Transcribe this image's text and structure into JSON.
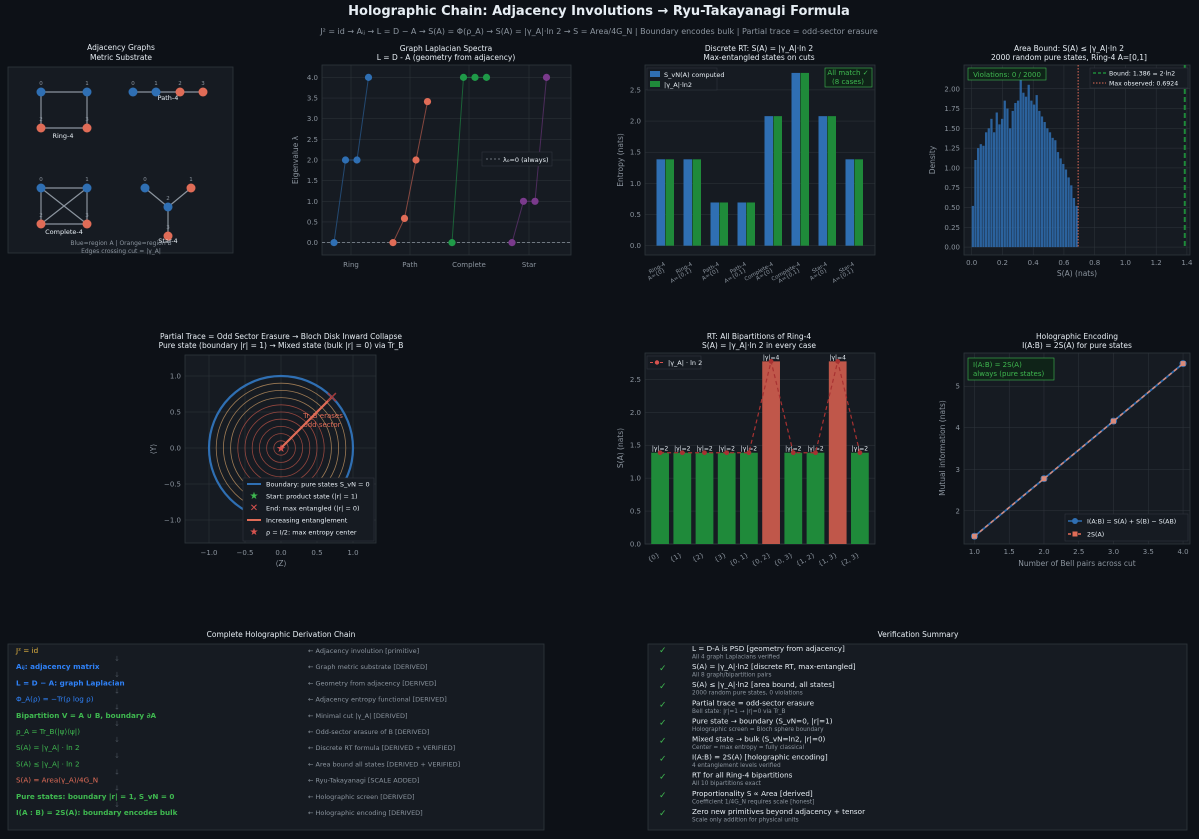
{
  "title": "Holographic Chain: Adjacency Involutions → Ryu-Takayanagi Formula",
  "subtitle": "J² = id  →  Aᵢⱼ  →  L = D − A  →  S(A) = Φ(ρ_A)  →  S(A) = |γ_A|·ln 2  →  S = Area/4G_N  |  Boundary encodes bulk  |  Partial trace = odd-sector erasure",
  "colors": {
    "blue": "#2f6fb3",
    "orange": "#e06c57",
    "green": "#1f8a3a",
    "purple": "#7a3a8c",
    "dashred": "#d9534f",
    "bg": "#0d1117",
    "panel": "#161b22"
  },
  "panel_graphs": {
    "title": "Adjacency Graphs",
    "title2": "Metric Substrate",
    "labels": [
      "Ring-4",
      "Path-4",
      "Complete-4",
      "Star-4"
    ],
    "legend1": "Blue=region A  |  Orange=region B",
    "legend2": "Edges crossing cut = |γ_A|"
  },
  "chart_data": [
    {
      "type": "scatter",
      "title": "Graph Laplacian Spectra",
      "subtitle": "L = D - A  (geometry from adjacency)",
      "ylabel": "Eigenvalue λ",
      "categories": [
        "Ring",
        "Path",
        "Complete",
        "Star"
      ],
      "series": [
        {
          "name": "Ring",
          "values": [
            0,
            2,
            2,
            4
          ]
        },
        {
          "name": "Path",
          "values": [
            0,
            0.586,
            2,
            3.414
          ]
        },
        {
          "name": "Complete",
          "values": [
            0,
            4,
            4,
            4
          ]
        },
        {
          "name": "Star",
          "values": [
            0,
            1,
            1,
            4
          ]
        }
      ],
      "legend": "λ₀=0 (always)",
      "ylim": [
        0,
        4
      ],
      "yticks": [
        "0.0",
        "0.5",
        "1.0",
        "1.5",
        "2.0",
        "2.5",
        "3.0",
        "3.5",
        "4.0"
      ]
    },
    {
      "type": "bar",
      "title": "Discrete RT: S(A) = |γ_A|·ln 2",
      "subtitle": "Max-entangled states on cuts",
      "ylabel": "Entropy (nats)",
      "categories": [
        "Ring-4\nA={0}",
        "Ring-4\nA={0,1}",
        "Path-4\nA={0}",
        "Path-4\nA={0,1}",
        "Complete-4\nA={0}",
        "Complete-4\nA={0,1}",
        "Star-4\nA={0}",
        "Star-4\nA={0,1}"
      ],
      "series": [
        {
          "name": "S_vN(A) computed",
          "values": [
            1.386,
            1.386,
            0.693,
            0.693,
            2.079,
            2.773,
            2.079,
            1.386
          ]
        },
        {
          "name": "|γ_A|·ln2",
          "values": [
            1.386,
            1.386,
            0.693,
            0.693,
            2.079,
            2.773,
            2.079,
            1.386
          ]
        }
      ],
      "annotation1": "All match ✓",
      "annotation2": "(8 cases)",
      "ylim": [
        0,
        2.9
      ],
      "yticks": [
        "0.0",
        "0.5",
        "1.0",
        "1.5",
        "2.0",
        "2.5"
      ]
    },
    {
      "type": "histogram",
      "title": "Area Bound: S(A) ≤ |γ_A|·ln 2",
      "subtitle": "2000 random pure states, Ring-4 A=[0,1]",
      "xlabel": "S(A) (nats)",
      "ylabel": "Density",
      "values": [
        0.52,
        1.1,
        1.25,
        1.3,
        1.28,
        1.45,
        1.5,
        1.62,
        1.45,
        1.7,
        1.55,
        1.62,
        1.85,
        1.75,
        1.5,
        1.72,
        1.82,
        1.85,
        2.18,
        1.95,
        1.9,
        2.05,
        1.85,
        1.8,
        1.92,
        1.72,
        1.65,
        1.58,
        1.5,
        1.45,
        1.38,
        1.35,
        1.2,
        1.12,
        1.05,
        0.98,
        0.88,
        0.78,
        0.62,
        0.52
      ],
      "annotation": "Violations: 0 / 2000",
      "legend": [
        "Bound: 1.386 = 2·ln2",
        "Max observed: 0.6924"
      ],
      "xlim": [
        -0.05,
        1.42
      ],
      "ylim": [
        0,
        2.3
      ],
      "xticks": [
        "0.0",
        "0.2",
        "0.4",
        "0.6",
        "0.8",
        "1.0",
        "1.2",
        "1.4"
      ],
      "yticks": [
        "0.00",
        "0.25",
        "0.50",
        "0.75",
        "1.00",
        "1.25",
        "1.50",
        "1.75",
        "2.00"
      ]
    },
    {
      "type": "line",
      "title": "Partial Trace = Odd Sector Erasure  →  Bloch Disk Inward Collapse",
      "subtitle": "Pure state (boundary |r| = 1) → Mixed state (bulk |r| = 0) via Tr_B",
      "xlabel": "⟨Z⟩",
      "ylabel": "⟨Y⟩",
      "annotation": "Tr_B erases\nodd sector",
      "legend": [
        "Boundary: pure states S_vN = 0",
        "Start: product state (|r| = 1)",
        "End: max entangled (|r| = 0)",
        "Increasing entanglement",
        "ρ = I/2: max entropy center"
      ],
      "xticks": [
        "−1.0",
        "−0.5",
        "0.0",
        "0.5",
        "1.0"
      ],
      "yticks": [
        "−1.0",
        "−0.5",
        "0.0",
        "0.5",
        "1.0"
      ]
    },
    {
      "type": "bar",
      "title": "RT: All Bipartitions of Ring-4",
      "subtitle": "S(A) = |γ_A|·ln 2 in every case",
      "ylabel": "S(A) (nats)",
      "categories": [
        "{0}",
        "{1}",
        "{2}",
        "{3}",
        "{0, 1}",
        "{0, 2}",
        "{0, 3}",
        "{1, 2}",
        "{1, 3}",
        "{2, 3}"
      ],
      "values": [
        1.386,
        1.386,
        1.386,
        1.386,
        1.386,
        2.773,
        1.386,
        1.386,
        2.773,
        1.386
      ],
      "bar_labels": [
        "|γ|=2",
        "|γ|=2",
        "|γ|=2",
        "|γ|=2",
        "|γ|=2",
        "|γ|=4",
        "|γ|=2",
        "|γ|=2",
        "|γ|=4",
        "|γ|=2"
      ],
      "legend": "|γ_A| · ln 2",
      "ylim": [
        0,
        2.9
      ],
      "yticks": [
        "0.0",
        "0.5",
        "1.0",
        "1.5",
        "2.0",
        "2.5"
      ]
    },
    {
      "type": "line",
      "title": "Holographic Encoding",
      "subtitle": "I(A:B) = 2S(A) for pure states",
      "xlabel": "Number of Bell pairs across cut",
      "ylabel": "Mutual information (nats)",
      "x": [
        1,
        2,
        3,
        4
      ],
      "series": [
        {
          "name": "I(A:B) = S(A) + S(B) − S(AB)",
          "values": [
            1.386,
            2.773,
            4.159,
            5.545
          ]
        },
        {
          "name": "2S(A)",
          "values": [
            1.386,
            2.773,
            4.159,
            5.545
          ]
        }
      ],
      "annotation1": "I(A:B) = 2S(A)",
      "annotation2": "always (pure states)",
      "xlim": [
        0.85,
        4.1
      ],
      "ylim": [
        1.2,
        5.8
      ],
      "xticks": [
        "1.0",
        "1.5",
        "2.0",
        "2.5",
        "3.0",
        "3.5",
        "4.0"
      ],
      "yticks": [
        "2",
        "3",
        "4",
        "5"
      ]
    }
  ],
  "chain": {
    "title": "Complete Holographic Derivation Chain",
    "rows": [
      {
        "left": "J² = id",
        "right": "← Adjacency involution [primitive]",
        "color": "#e3b341",
        "bold": false
      },
      {
        "left": "Aᵢⱼ: adjacency matrix",
        "right": "← Graph metric substrate [DERIVED]",
        "color": "#2f81f7",
        "bold": true
      },
      {
        "left": "L = D − A: graph Laplacian",
        "right": "← Geometry from adjacency [DERIVED]",
        "color": "#2f81f7",
        "bold": true
      },
      {
        "left": "Φ_A(ρ) = −Tr(ρ log ρ)",
        "right": "← Adjacency entropy functional [DERIVED]",
        "color": "#2f81f7",
        "bold": false
      },
      {
        "left": "Bipartition V = A ∪ B, boundary ∂A",
        "right": "← Minimal cut |γ_A| [DERIVED]",
        "color": "#3fb950",
        "bold": true
      },
      {
        "left": "ρ_A = Tr_B(|ψ⟩⟨ψ|)",
        "right": "← Odd-sector erasure of B [DERIVED]",
        "color": "#3fb950",
        "bold": false
      },
      {
        "left": "S(A) = |γ_A| · ln 2",
        "right": "← Discrete RT formula [DERIVED + VERIFIED]",
        "color": "#3fb950",
        "bold": false
      },
      {
        "left": "S(A) ≤ |γ_A| · ln 2",
        "right": "← Area bound all states [DERIVED + VERIFIED]",
        "color": "#3fb950",
        "bold": false
      },
      {
        "left": "S(A) = Area(γ_A)/4G_N",
        "right": "← Ryu-Takayanagi [SCALE ADDED]",
        "color": "#e06c57",
        "bold": false
      },
      {
        "left": "Pure states: boundary |r| = 1, S_vN = 0",
        "right": "← Holographic screen [DERIVED]",
        "color": "#3fb950",
        "bold": true
      },
      {
        "left": "I(A : B) = 2S(A): boundary encodes bulk",
        "right": "← Holographic encoding [DERIVED]",
        "color": "#3fb950",
        "bold": true
      }
    ]
  },
  "verify": {
    "title": "Verification Summary",
    "check": "✓",
    "rows": [
      {
        "main": "L = D-A is PSD  [geometry from adjacency]",
        "note": "All 4 graph Laplacians verified"
      },
      {
        "main": "S(A) = |γ_A|·ln2  [discrete RT, max-entangled]",
        "note": "All 8 graph/bipartition pairs"
      },
      {
        "main": "S(A) ≤ |γ_A|·ln2  [area bound, all states]",
        "note": "2000 random pure states, 0 violations"
      },
      {
        "main": "Partial trace = odd-sector erasure",
        "note": "Bell state: |r|=1 → |r|=0 via Tr_B"
      },
      {
        "main": "Pure state → boundary (S_vN=0, |r|=1)",
        "note": "Holographic screen = Bloch sphere boundary"
      },
      {
        "main": "Mixed state → bulk (S_vN=ln2, |r|=0)",
        "note": "Center = max entropy = fully classical"
      },
      {
        "main": "I(A:B) = 2S(A)  [holographic encoding]",
        "note": "4 entanglement levels verified"
      },
      {
        "main": "RT for all Ring-4 bipartitions",
        "note": "All 10 bipartitions exact"
      },
      {
        "main": "Proportionality S ∝ Area  [derived]",
        "note": "Coefficient 1/4G_N requires scale [honest]"
      },
      {
        "main": "Zero new primitives beyond adjacency + tensor",
        "note": "Scale only addition for physical units"
      }
    ]
  }
}
